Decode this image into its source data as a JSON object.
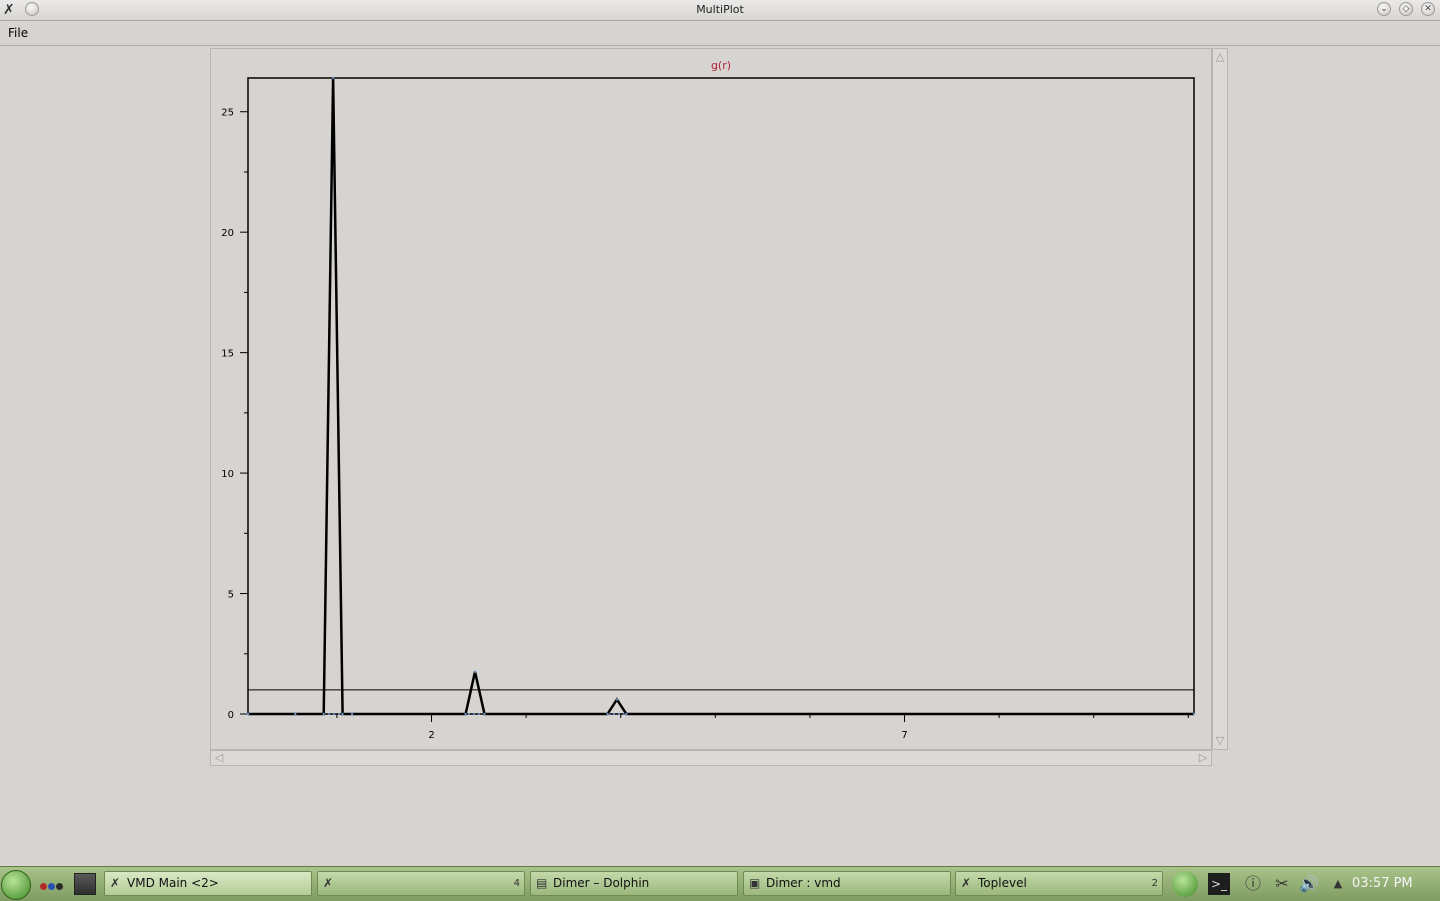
{
  "window": {
    "title": "MultiPlot",
    "buttons": {
      "minimize": "⌄",
      "maximize": "◇",
      "close": "✕"
    }
  },
  "menu": {
    "file": "File"
  },
  "chart_data": {
    "type": "line",
    "title": "g(r)",
    "xlabel": "",
    "ylabel": "",
    "xlim": [
      0.06,
      10.06
    ],
    "ylim": [
      0,
      26.4
    ],
    "x_ticks": [
      "2",
      "7"
    ],
    "y_ticks": [
      "0",
      "5",
      "10",
      "15",
      "20",
      "25"
    ],
    "grid": false,
    "reference_line": 1,
    "series": [
      {
        "color": "#000000",
        "x": [
          0.06,
          0.56,
          0.86,
          0.96,
          1.06,
          1.16,
          2.36,
          2.46,
          2.56,
          3.86,
          3.96,
          4.06,
          10.06
        ],
        "y": [
          0,
          0,
          0,
          26.4,
          0,
          0,
          0,
          1.75,
          0,
          0,
          0.6,
          0,
          0
        ]
      }
    ]
  },
  "taskbar": {
    "tasks": [
      {
        "label": "VMD Main <2>",
        "count": ""
      },
      {
        "label": "",
        "count": "4"
      },
      {
        "label": "Dimer – Dolphin",
        "count": ""
      },
      {
        "label": "Dimer : vmd",
        "count": ""
      },
      {
        "label": "Toplevel",
        "count": "2"
      }
    ],
    "clock": "03:57 PM"
  }
}
